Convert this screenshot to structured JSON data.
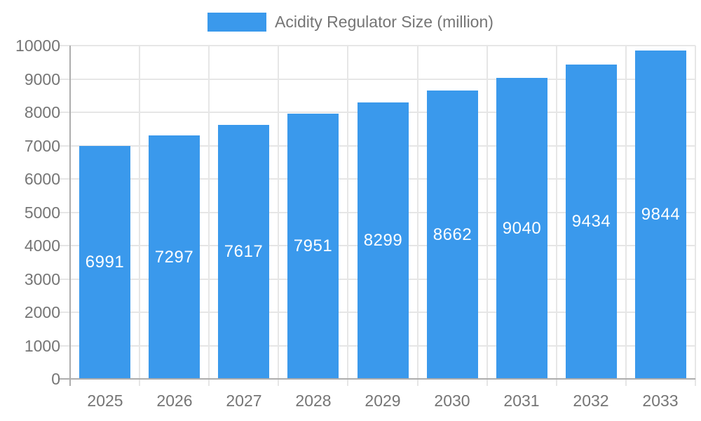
{
  "legend": {
    "label": "Acidity Regulator Size (million)"
  },
  "colors": {
    "bar": "#3a99ec",
    "grid": "#e6e6e6",
    "axis": "#adadad",
    "axis_text": "#757575",
    "value_text": "#ffffff"
  },
  "chart_data": {
    "type": "bar",
    "title": "Acidity Regulator Size (million)",
    "categories": [
      "2025",
      "2026",
      "2027",
      "2028",
      "2029",
      "2030",
      "2031",
      "2032",
      "2033"
    ],
    "values": [
      6991,
      7297,
      7617,
      7951,
      8299,
      8662,
      9040,
      9434,
      9844
    ],
    "xlabel": "",
    "ylabel": "",
    "ylim": [
      0,
      10000
    ],
    "ytick_step": 1000,
    "grid": true,
    "legend_position": "top-center",
    "value_labels": "inside-center"
  }
}
